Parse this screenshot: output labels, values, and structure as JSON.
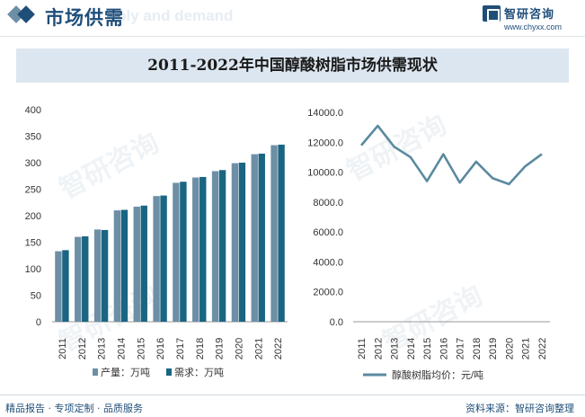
{
  "header": {
    "section_title": "市场供需",
    "watermark_en": "ply and demand"
  },
  "brand": {
    "name": "智研咨询",
    "url": "www.chyxx.com"
  },
  "watermark": "智研咨询",
  "chart_data": [
    {
      "type": "bar",
      "title": "2011-2022年中国醇酸树脂市场供需现状",
      "categories": [
        "2011",
        "2012",
        "2013",
        "2014",
        "2015",
        "2016",
        "2017",
        "2018",
        "2019",
        "2020",
        "2021",
        "2022"
      ],
      "series": [
        {
          "name": "产量：万吨",
          "color": "#6d8fa6",
          "values": [
            133,
            160,
            174,
            210,
            217,
            237,
            262,
            272,
            284,
            299,
            316,
            333
          ]
        },
        {
          "name": "需求：万吨",
          "color": "#1a6582",
          "values": [
            135,
            161,
            173,
            211,
            219,
            238,
            264,
            273,
            286,
            300,
            317,
            334
          ]
        }
      ],
      "ylim": [
        0,
        400
      ],
      "yticks": [
        "0",
        "50",
        "100",
        "150",
        "200",
        "250",
        "300",
        "350",
        "400"
      ],
      "legend_position": "bottom"
    },
    {
      "type": "line",
      "categories": [
        "2011",
        "2012",
        "2013",
        "2014",
        "2015",
        "2016",
        "2017",
        "2018",
        "2019",
        "2020",
        "2021",
        "2022"
      ],
      "series": [
        {
          "name": "醇酸树脂均价：元/吨",
          "color": "#5b8a9f",
          "values": [
            11800,
            13100,
            11700,
            11000,
            9400,
            11200,
            9300,
            10700,
            9600,
            9200,
            10400,
            11200
          ]
        }
      ],
      "ylim": [
        0,
        14000
      ],
      "yticks": [
        "0.0",
        "2000.0",
        "4000.0",
        "6000.0",
        "8000.0",
        "10000.0",
        "12000.0",
        "14000.0"
      ],
      "legend_position": "bottom"
    }
  ],
  "footer": {
    "left": "精品报告 · 专项定制 · 品质服务",
    "right": "资料来源：智研咨询整理"
  }
}
